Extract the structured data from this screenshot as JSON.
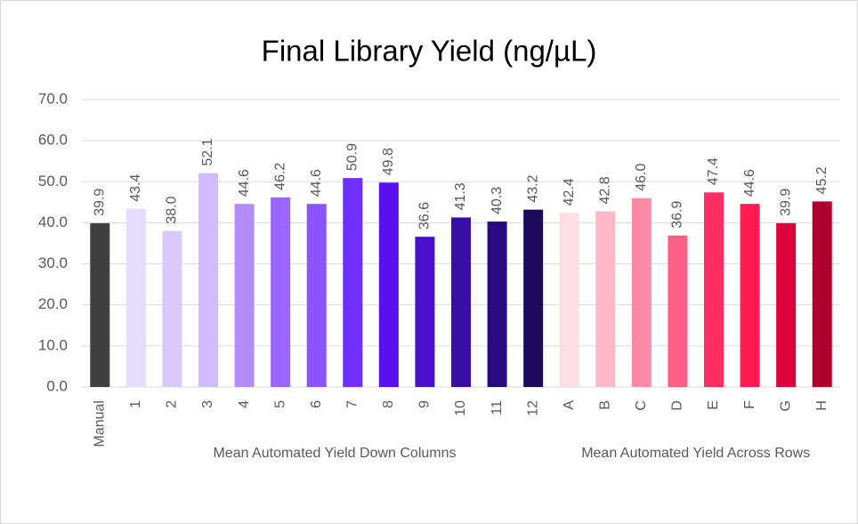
{
  "chart_data": {
    "type": "bar",
    "title": "Final Library Yield (ng/µL)",
    "categories": [
      "Manual",
      "1",
      "2",
      "3",
      "4",
      "5",
      "6",
      "7",
      "8",
      "9",
      "10",
      "11",
      "12",
      "A",
      "B",
      "C",
      "D",
      "E",
      "F",
      "G",
      "H"
    ],
    "values": [
      39.9,
      43.4,
      38.0,
      52.1,
      44.6,
      46.2,
      44.6,
      50.9,
      49.8,
      36.6,
      41.3,
      40.3,
      43.2,
      42.4,
      42.8,
      46.0,
      36.9,
      47.4,
      44.6,
      39.9,
      45.2
    ],
    "value_labels": [
      "39.9",
      "43.4",
      "38.0",
      "52.1",
      "44.6",
      "46.2",
      "44.6",
      "50.9",
      "49.8",
      "36.6",
      "41.3",
      "40.3",
      "43.2",
      "42.4",
      "42.8",
      "46.0",
      "36.9",
      "47.4",
      "44.6",
      "39.9",
      "45.2"
    ],
    "colors": [
      "#404040",
      "#e6dcff",
      "#d9c9ff",
      "#d0bcff",
      "#b28cff",
      "#9966ff",
      "#8a55ff",
      "#7030ff",
      "#5a10f0",
      "#4a10d0",
      "#3a0ca8",
      "#2a0a80",
      "#1e0a5a",
      "#ffdde4",
      "#ffb8c8",
      "#ff8aa5",
      "#ff5e85",
      "#ff2e60",
      "#ff1a50",
      "#e0003a",
      "#b0002e"
    ],
    "group_labels": [
      "Mean Automated Yield Down Columns",
      "Mean Automated Yield Across Rows"
    ],
    "ylim": [
      0,
      70
    ],
    "yticks": [
      {
        "value": 0,
        "label": "0.0"
      },
      {
        "value": 10,
        "label": "10.0"
      },
      {
        "value": 20,
        "label": "20.0"
      },
      {
        "value": 30,
        "label": "30.0"
      },
      {
        "value": 40,
        "label": "40.0"
      },
      {
        "value": 50,
        "label": "50.0"
      },
      {
        "value": 60,
        "label": "60.0"
      },
      {
        "value": 70,
        "label": "70.0"
      }
    ],
    "grid": true
  }
}
